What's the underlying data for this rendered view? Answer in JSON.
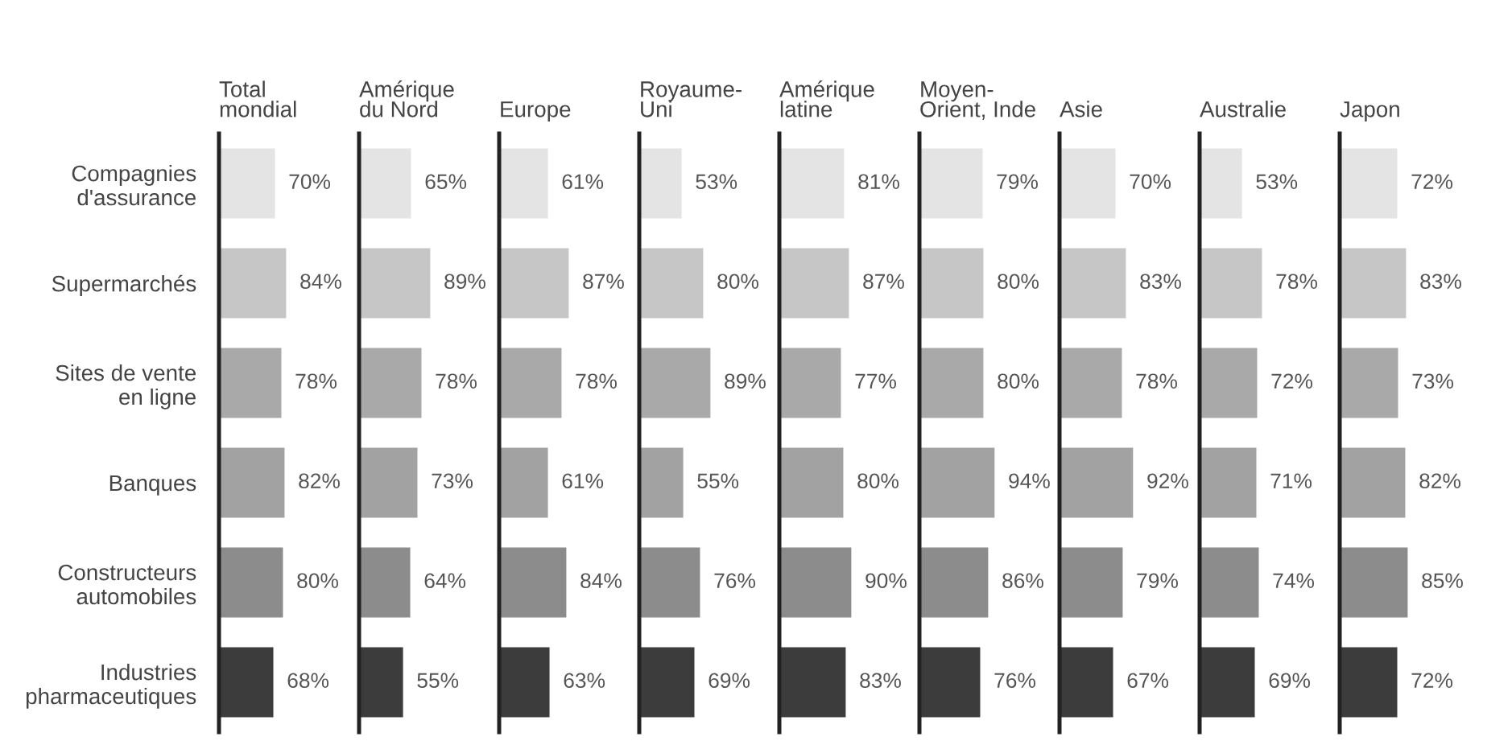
{
  "chart_data": [
    {
      "type": "bar",
      "orientation": "horizontal",
      "title": "Total\nmondial",
      "tick_labels": "y",
      "categories": [
        "Compagnies\nd'assurance",
        "Supermarchés",
        "Sites de vente\nen ligne",
        "Banques",
        "Constructeurs\nautomobiles",
        "Industries\npharmaceutiques"
      ],
      "values": [
        70,
        84,
        78,
        82,
        80,
        68
      ],
      "value_labels": [
        "70%",
        "84%",
        "78%",
        "82%",
        "80%",
        "68%"
      ],
      "colors": [
        "#e4e4e4",
        "#c6c6c6",
        "#a9a9a9",
        "#a2a2a2",
        "#8c8c8c",
        "#3c3c3c"
      ]
    },
    {
      "type": "bar",
      "orientation": "horizontal",
      "title": "Amérique\ndu Nord",
      "tick_labels": false,
      "categories": [
        null,
        null,
        null,
        null,
        null,
        null
      ],
      "values": [
        65,
        89,
        78,
        73,
        64,
        55
      ],
      "value_labels": [
        "65%",
        "89%",
        "78%",
        "73%",
        "64%",
        "55%"
      ],
      "colors": [
        "#e4e4e4",
        "#c6c6c6",
        "#a9a9a9",
        "#a2a2a2",
        "#8c8c8c",
        "#3c3c3c"
      ]
    },
    {
      "type": "bar",
      "orientation": "horizontal",
      "title": "Europe",
      "tick_labels": false,
      "categories": [
        null,
        null,
        null,
        null,
        null,
        null
      ],
      "values": [
        61,
        87,
        78,
        61,
        84,
        63
      ],
      "value_labels": [
        "61%",
        "87%",
        "78%",
        "61%",
        "84%",
        "63%"
      ],
      "colors": [
        "#e4e4e4",
        "#c6c6c6",
        "#a9a9a9",
        "#a2a2a2",
        "#8c8c8c",
        "#3c3c3c"
      ]
    },
    {
      "type": "bar",
      "orientation": "horizontal",
      "title": "Royaume-\nUni",
      "tick_labels": false,
      "categories": [
        null,
        null,
        null,
        null,
        null,
        null
      ],
      "values": [
        53,
        80,
        89,
        55,
        76,
        69
      ],
      "value_labels": [
        "53%",
        "80%",
        "89%",
        "55%",
        "76%",
        "69%"
      ],
      "colors": [
        "#e4e4e4",
        "#c6c6c6",
        "#a9a9a9",
        "#a2a2a2",
        "#8c8c8c",
        "#3c3c3c"
      ]
    },
    {
      "type": "bar",
      "orientation": "horizontal",
      "title": "Amérique\nlatine",
      "tick_labels": false,
      "categories": [
        null,
        null,
        null,
        null,
        null,
        null
      ],
      "values": [
        81,
        87,
        77,
        80,
        90,
        83
      ],
      "value_labels": [
        "81%",
        "87%",
        "77%",
        "80%",
        "90%",
        "83%"
      ],
      "colors": [
        "#e4e4e4",
        "#c6c6c6",
        "#a9a9a9",
        "#a2a2a2",
        "#8c8c8c",
        "#3c3c3c"
      ]
    },
    {
      "type": "bar",
      "orientation": "horizontal",
      "title": "Moyen-\nOrient, Inde",
      "tick_labels": false,
      "categories": [
        null,
        null,
        null,
        null,
        null,
        null
      ],
      "values": [
        79,
        80,
        80,
        94,
        86,
        76
      ],
      "value_labels": [
        "79%",
        "80%",
        "80%",
        "94%",
        "86%",
        "76%"
      ],
      "colors": [
        "#e4e4e4",
        "#c6c6c6",
        "#a9a9a9",
        "#a2a2a2",
        "#8c8c8c",
        "#3c3c3c"
      ]
    },
    {
      "type": "bar",
      "orientation": "horizontal",
      "title": "Asie",
      "tick_labels": false,
      "categories": [
        null,
        null,
        null,
        null,
        null,
        null
      ],
      "values": [
        70,
        83,
        78,
        92,
        79,
        67
      ],
      "value_labels": [
        "70%",
        "83%",
        "78%",
        "92%",
        "79%",
        "67%"
      ],
      "colors": [
        "#e4e4e4",
        "#c6c6c6",
        "#a9a9a9",
        "#a2a2a2",
        "#8c8c8c",
        "#3c3c3c"
      ]
    },
    {
      "type": "bar",
      "orientation": "horizontal",
      "title": "Australie",
      "tick_labels": false,
      "categories": [
        null,
        null,
        null,
        null,
        null,
        null
      ],
      "values": [
        53,
        78,
        72,
        71,
        74,
        69
      ],
      "value_labels": [
        "53%",
        "78%",
        "72%",
        "71%",
        "74%",
        "69%"
      ],
      "colors": [
        "#e4e4e4",
        "#c6c6c6",
        "#a9a9a9",
        "#a2a2a2",
        "#8c8c8c",
        "#3c3c3c"
      ]
    },
    {
      "type": "bar",
      "orientation": "horizontal",
      "title": "Japon",
      "tick_labels": false,
      "categories": [
        null,
        null,
        null,
        null,
        null,
        null
      ],
      "values": [
        72,
        83,
        73,
        82,
        85,
        72
      ],
      "value_labels": [
        "72%",
        "83%",
        "73%",
        "82%",
        "85%",
        "72%"
      ],
      "colors": [
        "#e4e4e4",
        "#c6c6c6",
        "#a9a9a9",
        "#a2a2a2",
        "#8c8c8c",
        "#3c3c3c"
      ]
    }
  ]
}
